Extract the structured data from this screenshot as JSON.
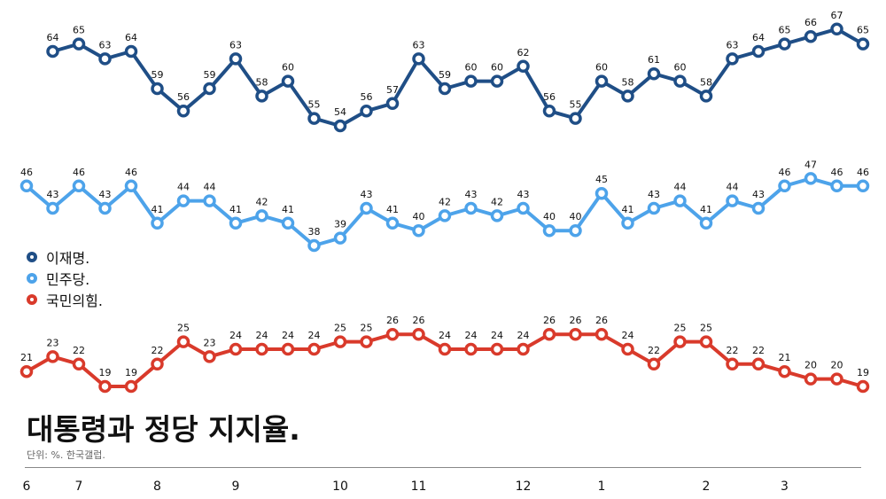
{
  "chart_data": {
    "type": "line",
    "title": "대통령과 정당 지지율.",
    "source": "단위: %. 한국갤럽.",
    "month_ticks": [
      {
        "label": "6",
        "index": 0
      },
      {
        "label": "7",
        "index": 2
      },
      {
        "label": "8",
        "index": 5
      },
      {
        "label": "9",
        "index": 8
      },
      {
        "label": "10",
        "index": 12
      },
      {
        "label": "11",
        "index": 15
      },
      {
        "label": "12",
        "index": 19
      },
      {
        "label": "1",
        "index": 22
      },
      {
        "label": "2",
        "index": 26
      },
      {
        "label": "3",
        "index": 29
      }
    ],
    "series": [
      {
        "name": "이재명.",
        "color": "#1f4e86",
        "values": [
          64,
          65,
          63,
          64,
          59,
          56,
          59,
          63,
          58,
          60,
          55,
          54,
          56,
          57,
          63,
          59,
          60,
          60,
          62,
          56,
          55,
          60,
          58,
          61,
          60,
          58,
          63,
          64,
          65,
          66,
          67,
          65
        ]
      },
      {
        "name": "민주당.",
        "color": "#4da3ea",
        "values": [
          46,
          43,
          46,
          43,
          46,
          41,
          44,
          44,
          41,
          42,
          41,
          38,
          39,
          43,
          41,
          40,
          42,
          43,
          42,
          43,
          40,
          40,
          45,
          41,
          43,
          44,
          41,
          44,
          43,
          46,
          47,
          46,
          46
        ]
      },
      {
        "name": "국민의힘.",
        "color": "#d93a2b",
        "values": [
          21,
          23,
          22,
          19,
          19,
          22,
          25,
          23,
          24,
          24,
          24,
          24,
          25,
          25,
          26,
          26,
          24,
          24,
          24,
          24,
          26,
          26,
          26,
          24,
          22,
          25,
          25,
          22,
          22,
          21,
          20,
          20,
          19
        ]
      }
    ],
    "grid": false,
    "legend_position": "left-middle"
  }
}
